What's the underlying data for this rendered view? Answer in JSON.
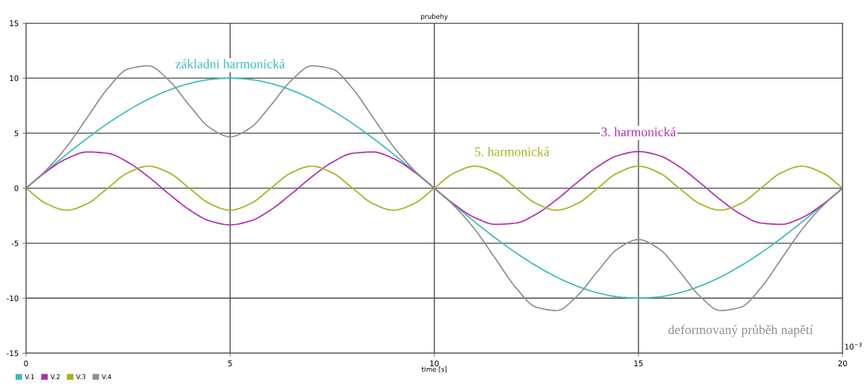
{
  "chart_data": {
    "type": "line",
    "title": "prubehy",
    "xlabel": "time [s]",
    "x": [
      0,
      0.5,
      1,
      1.5,
      2,
      2.5,
      3,
      3.5,
      4,
      4.5,
      5,
      5.5,
      6,
      6.5,
      7,
      7.5,
      8,
      8.5,
      9,
      9.5,
      10,
      10.5,
      11,
      11.5,
      12,
      12.5,
      13,
      13.5,
      14,
      14.5,
      15,
      15.5,
      16,
      16.5,
      17,
      17.5,
      18,
      18.5,
      19,
      19.5,
      20
    ],
    "series": [
      {
        "name": "V.1",
        "color": "#3cbcbc",
        "values": [
          0,
          1.56,
          3.09,
          4.54,
          5.88,
          7.07,
          8.09,
          8.91,
          9.51,
          9.88,
          10,
          9.88,
          9.51,
          8.91,
          8.09,
          7.07,
          5.88,
          4.54,
          3.09,
          1.56,
          0,
          -1.56,
          -3.09,
          -4.54,
          -5.88,
          -7.07,
          -8.09,
          -8.91,
          -9.51,
          -9.88,
          -10,
          -9.88,
          -9.51,
          -8.91,
          -8.09,
          -7.07,
          -5.88,
          -4.54,
          -3.09,
          -1.56,
          0
        ]
      },
      {
        "name": "V.2",
        "color": "#b030b0",
        "values": [
          0,
          1.51,
          2.69,
          3.29,
          3.17,
          2.35,
          1.03,
          -0.52,
          -1.96,
          -2.97,
          -3.33,
          -2.97,
          -1.96,
          -0.52,
          1.03,
          2.35,
          3.17,
          3.29,
          2.69,
          1.51,
          0,
          -1.51,
          -2.69,
          -3.29,
          -3.17,
          -2.35,
          -1.03,
          0.52,
          1.96,
          2.97,
          3.33,
          2.97,
          1.96,
          0.52,
          -1.03,
          -2.35,
          -3.17,
          -3.29,
          -2.69,
          -1.51,
          0
        ]
      },
      {
        "name": "V.3",
        "color": "#a8b020",
        "values": [
          0,
          -1.41,
          -2,
          -1.41,
          0,
          1.41,
          2,
          1.41,
          0,
          -1.41,
          -2,
          -1.41,
          0,
          1.41,
          2,
          1.41,
          0,
          -1.41,
          -2,
          -1.41,
          0,
          1.41,
          2,
          1.41,
          0,
          -1.41,
          -2,
          -1.41,
          0,
          1.41,
          2,
          1.41,
          0,
          -1.41,
          -2,
          -1.41,
          0,
          1.41,
          2,
          1.41,
          0
        ]
      },
      {
        "name": "V.4",
        "color": "#909090",
        "values": [
          0,
          1.66,
          3.78,
          6.42,
          9.05,
          10.83,
          11.12,
          9.8,
          7.55,
          5.5,
          4.67,
          5.5,
          7.55,
          9.8,
          11.12,
          10.83,
          9.05,
          6.42,
          3.78,
          1.66,
          0,
          -1.66,
          -3.78,
          -6.42,
          -9.05,
          -10.83,
          -11.12,
          -9.8,
          -7.55,
          -5.5,
          -4.67,
          -5.5,
          -7.55,
          -9.8,
          -11.12,
          -10.83,
          -9.05,
          -6.42,
          -3.78,
          -1.66,
          0
        ]
      }
    ],
    "annotations": [
      "základni harmonická",
      "3. harmonická",
      "5. harmonická",
      "deformovaný průběh napětí",
      "10$^{−3}$"
    ],
    "xlim": [
      0,
      20
    ],
    "ylim": [
      -15,
      15
    ],
    "xticks": [
      0,
      5,
      10,
      15,
      20
    ],
    "yticks": [
      -15,
      -10,
      -5,
      0,
      5,
      10,
      15
    ],
    "grid": true,
    "legend": "bottom left",
    "marker": "none",
    "line_style": "solid"
  }
}
